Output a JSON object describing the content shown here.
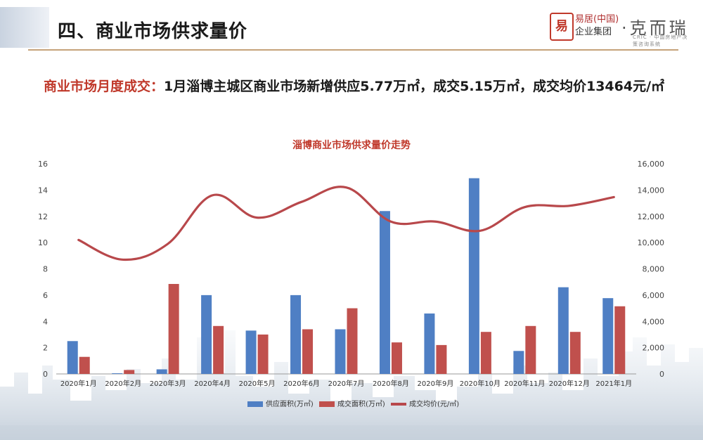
{
  "page": {
    "title": "四、商业市场供求量价",
    "logo": {
      "seal": "易",
      "line1": "易居(中国)",
      "line2": "企业集团",
      "brand": "·克而瑞",
      "sub": "CRIC · 中国房地产决策咨询系统"
    },
    "headline_lead": "商业市场月度成交：",
    "headline_text": "1月淄博主城区商业市场新增供应5.77万㎡，成交5.15万㎡，成交均价13464元/㎡"
  },
  "colors": {
    "supply": "#4f7fc4",
    "deal": "#c0504d",
    "price": "#b8484b",
    "accent": "#c0392b"
  },
  "chart_data": {
    "type": "bar",
    "title": "淄博商业市场供求量价走势",
    "categories": [
      "2020年1月",
      "2020年2月",
      "2020年3月",
      "2020年4月",
      "2020年5月",
      "2020年6月",
      "2020年7月",
      "2020年8月",
      "2020年9月",
      "2020年10月",
      "2020年11月",
      "2020年12月",
      "2021年1月"
    ],
    "series": [
      {
        "name": "供应面积(万㎡)",
        "type": "bar",
        "axis": "left",
        "values": [
          2.5,
          0.05,
          0.35,
          6.0,
          3.3,
          6.0,
          3.4,
          12.4,
          4.6,
          14.9,
          1.75,
          6.6,
          5.77
        ]
      },
      {
        "name": "成交面积(万㎡)",
        "type": "bar",
        "axis": "left",
        "values": [
          1.3,
          0.3,
          6.85,
          3.65,
          3.0,
          3.4,
          5.0,
          2.4,
          2.2,
          3.2,
          3.65,
          3.2,
          5.15
        ]
      },
      {
        "name": "成交均价(元/㎡)",
        "type": "line",
        "axis": "right",
        "values": [
          10200,
          8700,
          9900,
          13600,
          11900,
          13100,
          14200,
          11600,
          11600,
          10900,
          12700,
          12800,
          13464
        ]
      }
    ],
    "ylim_left": [
      0,
      16
    ],
    "yticks_left": [
      "0",
      "2",
      "4",
      "6",
      "8",
      "10",
      "12",
      "14",
      "16"
    ],
    "ylim_right": [
      0,
      16000
    ],
    "yticks_right": [
      "0",
      "2,000",
      "4,000",
      "6,000",
      "8,000",
      "10,000",
      "12,000",
      "14,000",
      "16,000"
    ],
    "legend_position": "bottom",
    "grid": false
  }
}
